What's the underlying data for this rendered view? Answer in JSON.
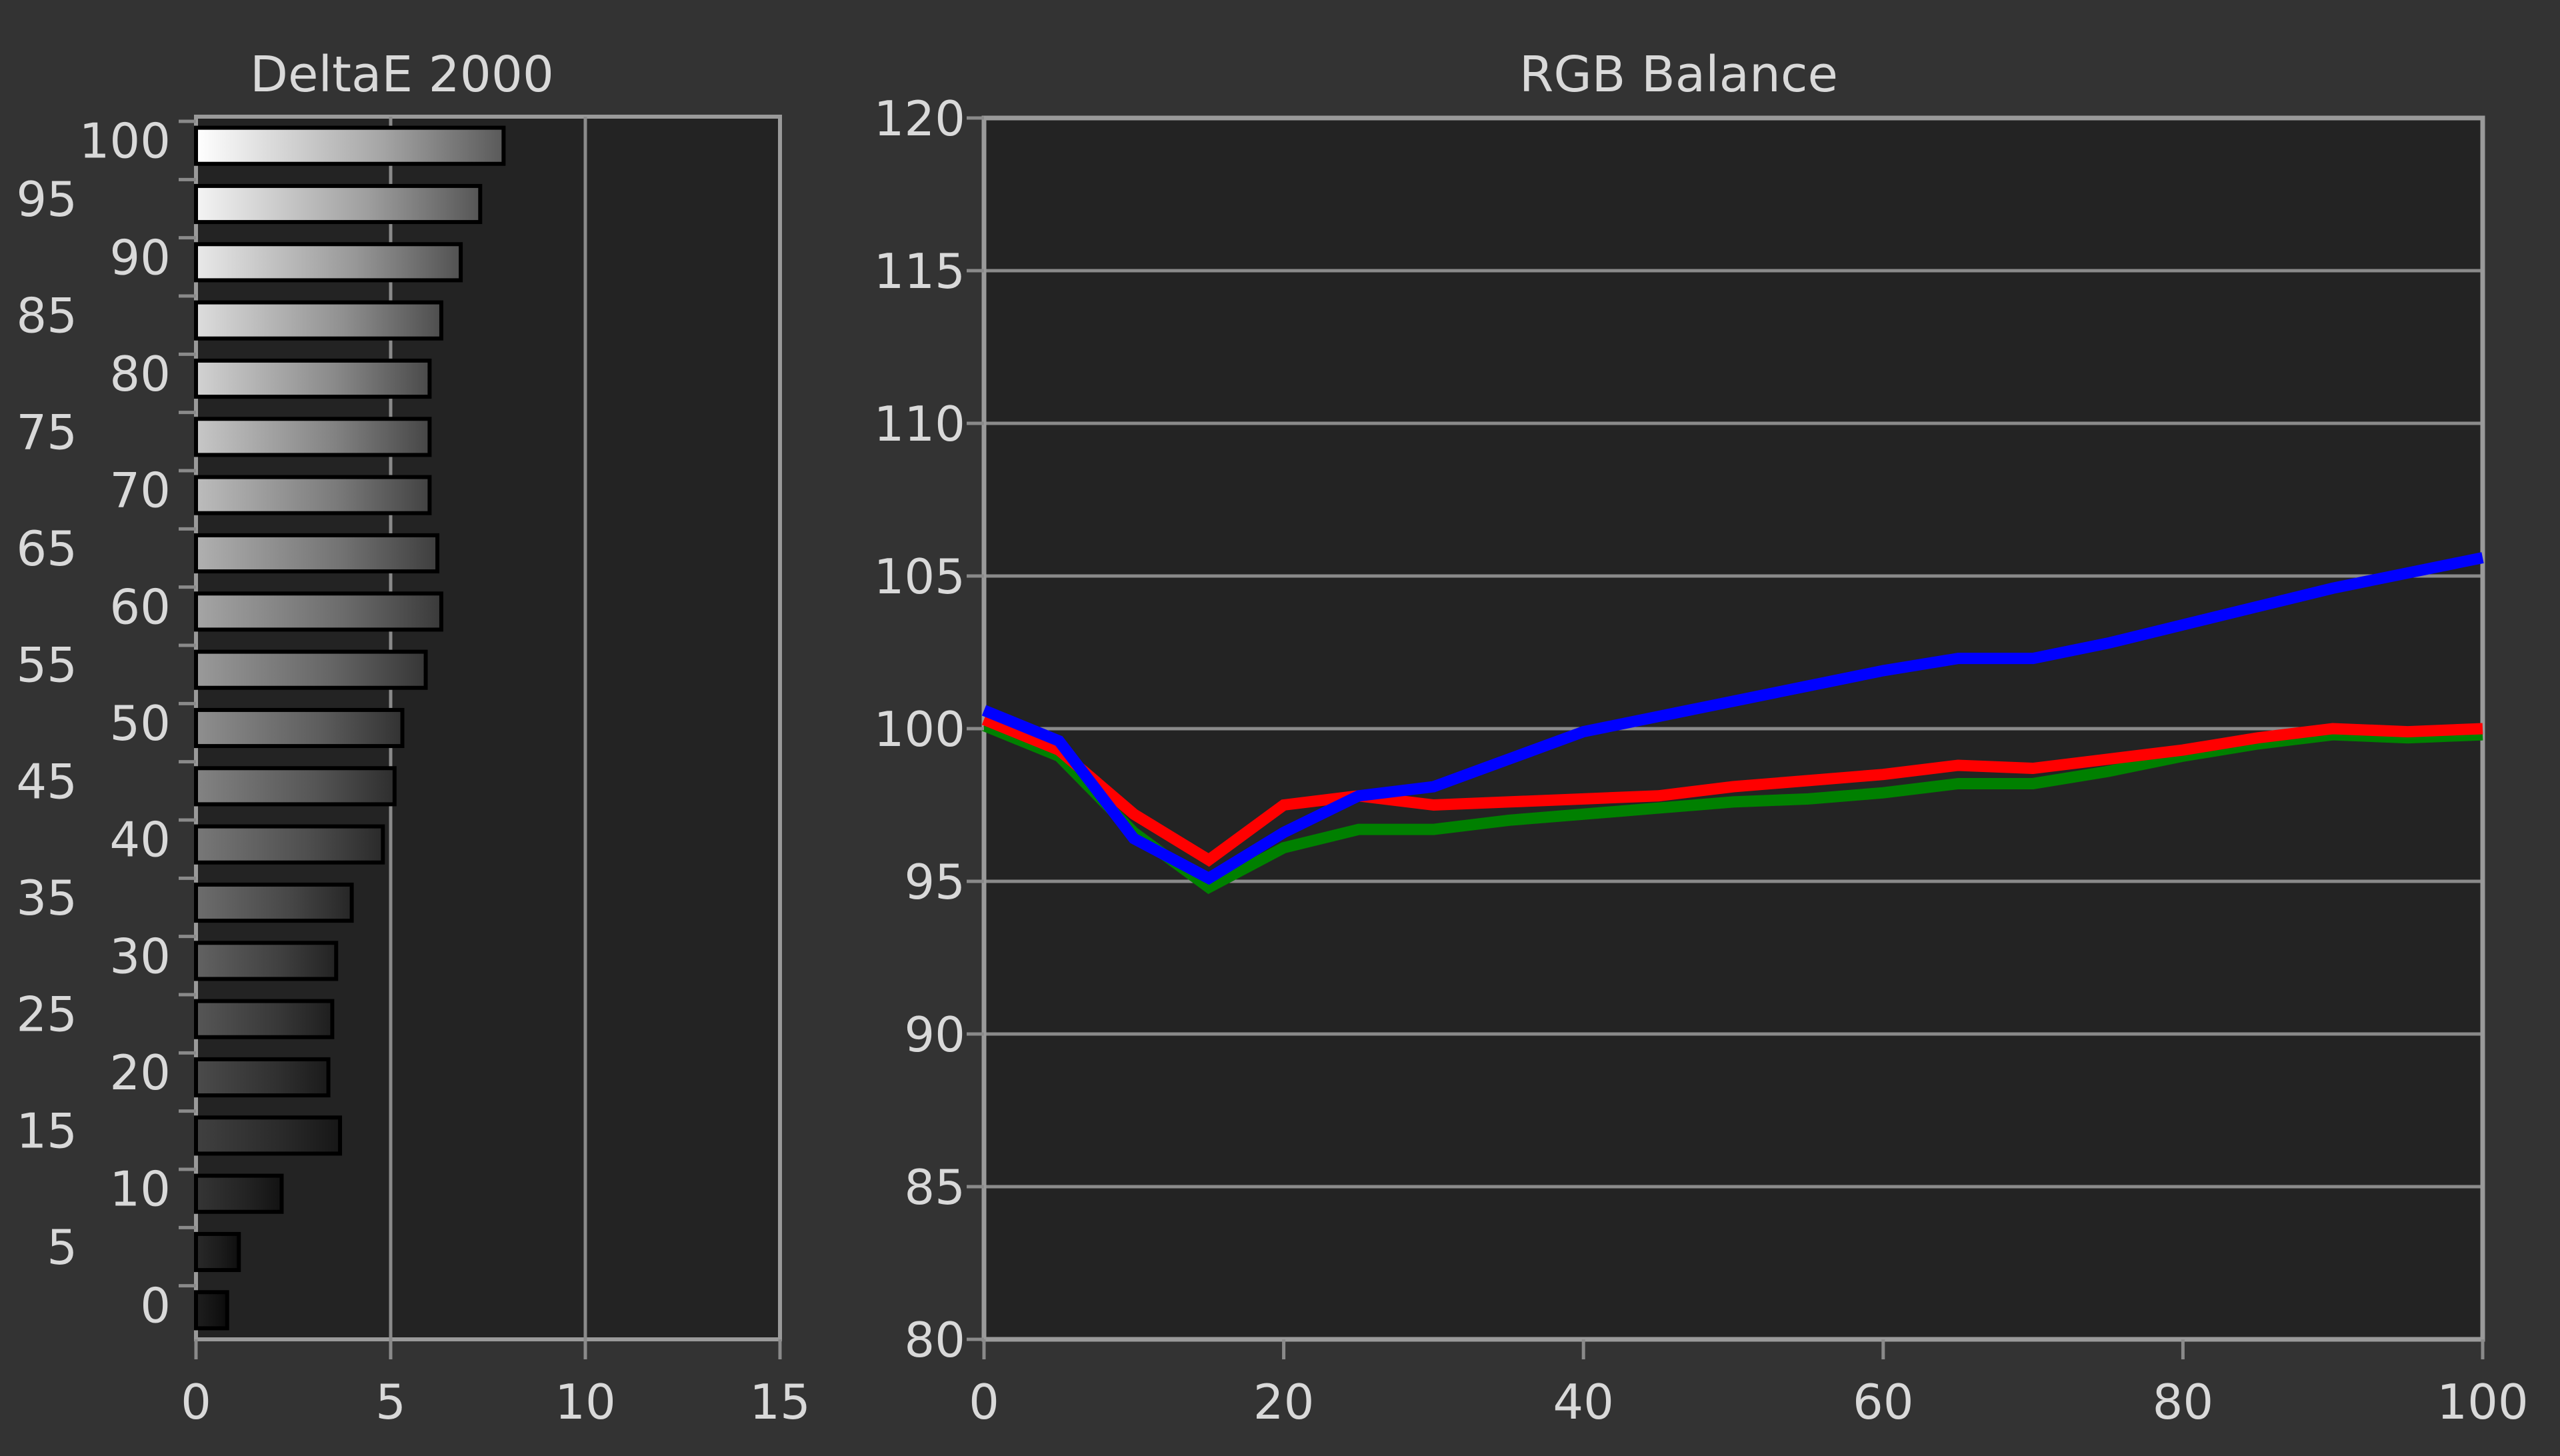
{
  "colors": {
    "background": "#333333",
    "plot_background": "#232323",
    "frame": "#9a9a9a",
    "grid": "#8a8a8a",
    "text": "#d9d9d9",
    "red": "#ff0000",
    "green": "#008000",
    "blue": "#0000ff"
  },
  "chart_data": [
    {
      "type": "bar",
      "orientation": "horizontal",
      "title": "DeltaE 2000",
      "categories": [
        0,
        5,
        10,
        15,
        20,
        25,
        30,
        35,
        40,
        45,
        50,
        55,
        60,
        65,
        70,
        75,
        80,
        85,
        90,
        95,
        100
      ],
      "category_labels": [
        "0",
        "5",
        "10",
        "15",
        "20",
        "25",
        "30",
        "35",
        "40",
        "45",
        "50",
        "55",
        "60",
        "65",
        "70",
        "75",
        "80",
        "85",
        "90",
        "95",
        "100"
      ],
      "values": [
        0.8,
        1.1,
        2.2,
        3.7,
        3.4,
        3.5,
        3.6,
        4.0,
        4.8,
        5.1,
        5.3,
        5.9,
        6.3,
        6.2,
        6.0,
        6.0,
        6.0,
        6.3,
        6.8,
        7.3,
        7.9
      ],
      "xlim": [
        0,
        15
      ],
      "x_ticks": [
        "0",
        "5",
        "10",
        "15"
      ],
      "vertical_grid": [
        5,
        10
      ],
      "grid": true
    },
    {
      "type": "line",
      "title": "RGB Balance",
      "xlim": [
        0,
        100
      ],
      "ylim": [
        80,
        120
      ],
      "x_ticks": [
        "0",
        "20",
        "40",
        "60",
        "80",
        "100"
      ],
      "y_ticks": [
        "80",
        "85",
        "90",
        "95",
        "100",
        "105",
        "110",
        "115",
        "120"
      ],
      "grid": true,
      "x": [
        0,
        5,
        10,
        15,
        20,
        25,
        30,
        35,
        40,
        45,
        50,
        55,
        60,
        65,
        70,
        75,
        80,
        85,
        90,
        95,
        100
      ],
      "series": [
        {
          "color": "#008000",
          "values": [
            100.1,
            99.1,
            96.6,
            94.8,
            96.1,
            96.7,
            96.7,
            97.0,
            97.2,
            97.4,
            97.6,
            97.7,
            97.9,
            98.2,
            98.2,
            98.6,
            99.1,
            99.5,
            99.8,
            99.7,
            99.8
          ]
        },
        {
          "color": "#ff0000",
          "values": [
            100.3,
            99.3,
            97.2,
            95.7,
            97.5,
            97.8,
            97.5,
            97.6,
            97.7,
            97.8,
            98.1,
            98.3,
            98.5,
            98.8,
            98.7,
            99.0,
            99.3,
            99.7,
            100.0,
            99.9,
            100.0
          ]
        },
        {
          "color": "#0000ff",
          "values": [
            100.6,
            99.6,
            96.4,
            95.1,
            96.6,
            97.8,
            98.1,
            99.0,
            99.9,
            100.4,
            100.9,
            101.4,
            101.9,
            102.3,
            102.3,
            102.8,
            103.4,
            104.0,
            104.6,
            105.1,
            105.6
          ]
        }
      ]
    }
  ]
}
